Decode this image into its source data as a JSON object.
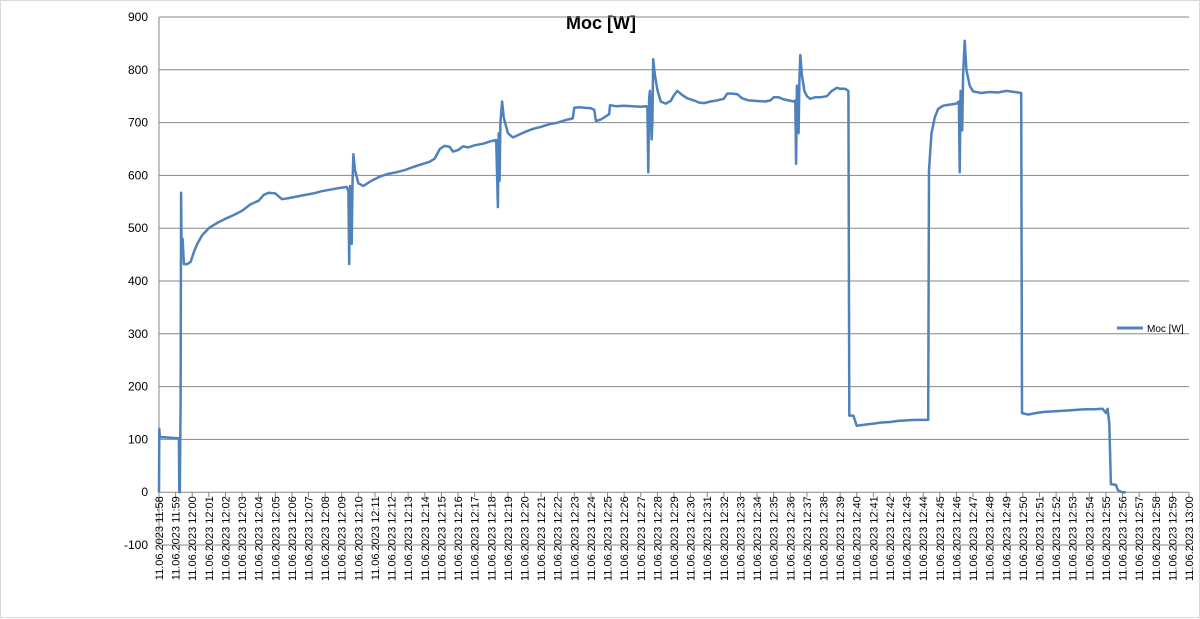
{
  "chart_data": {
    "type": "line",
    "title": "Moc [W]",
    "xlabel": "",
    "ylabel": "",
    "ylim": [
      -100,
      900
    ],
    "yticks": [
      -100,
      0,
      100,
      200,
      300,
      400,
      500,
      600,
      700,
      800,
      900
    ],
    "grid": true,
    "legend_position": "right",
    "color": "#4f81bd",
    "x_range_minutes": [
      0,
      62
    ],
    "categories": [
      "11.06.2023 11:58",
      "11.06.2023 11:59",
      "11.06.2023 12:00",
      "11.06.2023 12:01",
      "11.06.2023 12:02",
      "11.06.2023 12:03",
      "11.06.2023 12:04",
      "11.06.2023 12:05",
      "11.06.2023 12:06",
      "11.06.2023 12:07",
      "11.06.2023 12:08",
      "11.06.2023 12:09",
      "11.06.2023 12:10",
      "11.06.2023 12:11",
      "11.06.2023 12:12",
      "11.06.2023 12:13",
      "11.06.2023 12:14",
      "11.06.2023 12:15",
      "11.06.2023 12:16",
      "11.06.2023 12:17",
      "11.06.2023 12:18",
      "11.06.2023 12:19",
      "11.06.2023 12:20",
      "11.06.2023 12:21",
      "11.06.2023 12:22",
      "11.06.2023 12:23",
      "11.06.2023 12:24",
      "11.06.2023 12:25",
      "11.06.2023 12:26",
      "11.06.2023 12:27",
      "11.06.2023 12:28",
      "11.06.2023 12:29",
      "11.06.2023 12:30",
      "11.06.2023 12:31",
      "11.06.2023 12:32",
      "11.06.2023 12:33",
      "11.06.2023 12:34",
      "11.06.2023 12:35",
      "11.06.2023 12:36",
      "11.06.2023 12:37",
      "11.06.2023 12:38",
      "11.06.2023 12:39",
      "11.06.2023 12:40",
      "11.06.2023 12:41",
      "11.06.2023 12:42",
      "11.06.2023 12:43",
      "11.06.2023 12:44",
      "11.06.2023 12:45",
      "11.06.2023 12:46",
      "11.06.2023 12:47",
      "11.06.2023 12:48",
      "11.06.2023 12:49",
      "11.06.2023 12:50",
      "11.06.2023 12:51",
      "11.06.2023 12:52",
      "11.06.2023 12:53",
      "11.06.2023 12:54",
      "11.06.2023 12:55",
      "11.06.2023 12:56",
      "11.06.2023 12:57",
      "11.06.2023 12:58",
      "11.06.2023 12:59",
      "11.06.2023 13:00"
    ],
    "series": [
      {
        "name": "Moc [W]",
        "points": [
          [
            0.0,
            0
          ],
          [
            0.02,
            120
          ],
          [
            0.05,
            104
          ],
          [
            0.3,
            104
          ],
          [
            0.7,
            103
          ],
          [
            1.1,
            102
          ],
          [
            1.2,
            102
          ],
          [
            1.22,
            0
          ],
          [
            1.25,
            0
          ],
          [
            1.3,
            170
          ],
          [
            1.33,
            567
          ],
          [
            1.36,
            450
          ],
          [
            1.42,
            480
          ],
          [
            1.5,
            432
          ],
          [
            1.7,
            432
          ],
          [
            1.9,
            436
          ],
          [
            2.1,
            455
          ],
          [
            2.3,
            470
          ],
          [
            2.6,
            487
          ],
          [
            3,
            500
          ],
          [
            3.5,
            510
          ],
          [
            4,
            518
          ],
          [
            4.5,
            525
          ],
          [
            5,
            533
          ],
          [
            5.5,
            545
          ],
          [
            6,
            552
          ],
          [
            6.3,
            563
          ],
          [
            6.6,
            567
          ],
          [
            7,
            566
          ],
          [
            7.4,
            555
          ],
          [
            7.8,
            557
          ],
          [
            8.3,
            560
          ],
          [
            8.8,
            563
          ],
          [
            9.3,
            566
          ],
          [
            9.8,
            570
          ],
          [
            10.3,
            573
          ],
          [
            10.8,
            576
          ],
          [
            11.3,
            578
          ],
          [
            11.4,
            570
          ],
          [
            11.45,
            432
          ],
          [
            11.5,
            580
          ],
          [
            11.55,
            560
          ],
          [
            11.6,
            470
          ],
          [
            11.65,
            585
          ],
          [
            11.7,
            640
          ],
          [
            11.8,
            610
          ],
          [
            12,
            585
          ],
          [
            12.3,
            580
          ],
          [
            12.8,
            590
          ],
          [
            13.3,
            598
          ],
          [
            13.8,
            603
          ],
          [
            14.3,
            606
          ],
          [
            14.8,
            610
          ],
          [
            15.3,
            616
          ],
          [
            15.8,
            621
          ],
          [
            16.3,
            626
          ],
          [
            16.6,
            632
          ],
          [
            16.9,
            650
          ],
          [
            17.2,
            656
          ],
          [
            17.5,
            654
          ],
          [
            17.7,
            645
          ],
          [
            18,
            648
          ],
          [
            18.3,
            655
          ],
          [
            18.6,
            653
          ],
          [
            19,
            657
          ],
          [
            19.5,
            660
          ],
          [
            20,
            665
          ],
          [
            20.3,
            667
          ],
          [
            20.4,
            540
          ],
          [
            20.45,
            680
          ],
          [
            20.5,
            590
          ],
          [
            20.55,
            700
          ],
          [
            20.65,
            740
          ],
          [
            20.75,
            710
          ],
          [
            21,
            680
          ],
          [
            21.3,
            672
          ],
          [
            21.6,
            676
          ],
          [
            22,
            682
          ],
          [
            22.5,
            688
          ],
          [
            23,
            692
          ],
          [
            23.5,
            697
          ],
          [
            24,
            700
          ],
          [
            24.5,
            705
          ],
          [
            24.9,
            708
          ],
          [
            25,
            728
          ],
          [
            25.3,
            729
          ],
          [
            25.6,
            728
          ],
          [
            26,
            727
          ],
          [
            26.2,
            724
          ],
          [
            26.3,
            703
          ],
          [
            26.6,
            706
          ],
          [
            26.9,
            712
          ],
          [
            27.1,
            716
          ],
          [
            27.15,
            733
          ],
          [
            27.5,
            731
          ],
          [
            28,
            732
          ],
          [
            28.5,
            731
          ],
          [
            29,
            730
          ],
          [
            29.3,
            731
          ],
          [
            29.4,
            730
          ],
          [
            29.45,
            606
          ],
          [
            29.5,
            745
          ],
          [
            29.55,
            760
          ],
          [
            29.6,
            740
          ],
          [
            29.65,
            668
          ],
          [
            29.7,
            700
          ],
          [
            29.75,
            820
          ],
          [
            29.85,
            790
          ],
          [
            30,
            762
          ],
          [
            30.2,
            740
          ],
          [
            30.5,
            736
          ],
          [
            30.8,
            741
          ],
          [
            31,
            752
          ],
          [
            31.2,
            760
          ],
          [
            31.5,
            752
          ],
          [
            31.8,
            746
          ],
          [
            32.2,
            742
          ],
          [
            32.5,
            738
          ],
          [
            32.8,
            737
          ],
          [
            33.2,
            740
          ],
          [
            33.6,
            742
          ],
          [
            34,
            745
          ],
          [
            34.2,
            755
          ],
          [
            34.5,
            755
          ],
          [
            34.8,
            754
          ],
          [
            35.1,
            746
          ],
          [
            35.5,
            742
          ],
          [
            36,
            741
          ],
          [
            36.5,
            740
          ],
          [
            36.8,
            742
          ],
          [
            37,
            748
          ],
          [
            37.3,
            748
          ],
          [
            37.6,
            744
          ],
          [
            37.9,
            742
          ],
          [
            38.2,
            740
          ],
          [
            38.3,
            742
          ],
          [
            38.35,
            622
          ],
          [
            38.4,
            770
          ],
          [
            38.45,
            760
          ],
          [
            38.5,
            680
          ],
          [
            38.55,
            780
          ],
          [
            38.6,
            828
          ],
          [
            38.7,
            790
          ],
          [
            38.85,
            760
          ],
          [
            39,
            750
          ],
          [
            39.2,
            745
          ],
          [
            39.5,
            748
          ],
          [
            39.8,
            748
          ],
          [
            40.2,
            750
          ],
          [
            40.5,
            760
          ],
          [
            40.8,
            766
          ],
          [
            41,
            764
          ],
          [
            41.3,
            764
          ],
          [
            41.5,
            760
          ],
          [
            41.55,
            145
          ],
          [
            41.8,
            145
          ],
          [
            42,
            126
          ],
          [
            42.5,
            128
          ],
          [
            43,
            130
          ],
          [
            43.5,
            132
          ],
          [
            44,
            133
          ],
          [
            44.5,
            135
          ],
          [
            45,
            136
          ],
          [
            45.5,
            137
          ],
          [
            46,
            137
          ],
          [
            46.3,
            137
          ],
          [
            46.35,
            610
          ],
          [
            46.5,
            680
          ],
          [
            46.7,
            710
          ],
          [
            46.9,
            726
          ],
          [
            47.2,
            732
          ],
          [
            47.6,
            734
          ],
          [
            48,
            736
          ],
          [
            48.15,
            740
          ],
          [
            48.2,
            606
          ],
          [
            48.25,
            760
          ],
          [
            48.3,
            740
          ],
          [
            48.35,
            685
          ],
          [
            48.4,
            790
          ],
          [
            48.5,
            855
          ],
          [
            48.6,
            800
          ],
          [
            48.8,
            770
          ],
          [
            49,
            759
          ],
          [
            49.5,
            756
          ],
          [
            50,
            758
          ],
          [
            50.5,
            757
          ],
          [
            51,
            760
          ],
          [
            51.5,
            758
          ],
          [
            51.9,
            756
          ],
          [
            51.95,
            150
          ],
          [
            52.3,
            147
          ],
          [
            52.8,
            150
          ],
          [
            53.3,
            152
          ],
          [
            53.8,
            153
          ],
          [
            54.3,
            154
          ],
          [
            54.8,
            155
          ],
          [
            55.3,
            156
          ],
          [
            55.8,
            157
          ],
          [
            56.3,
            157
          ],
          [
            56.8,
            158
          ],
          [
            57,
            150
          ],
          [
            57.1,
            158
          ],
          [
            57.2,
            130
          ],
          [
            57.3,
            15
          ],
          [
            57.6,
            14
          ],
          [
            57.7,
            5
          ],
          [
            57.8,
            2
          ],
          [
            58,
            0
          ],
          [
            58.2,
            0
          ]
        ]
      }
    ]
  }
}
